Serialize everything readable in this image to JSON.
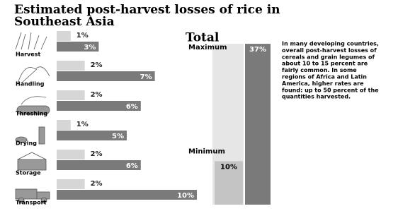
{
  "chart_data": {
    "type": "bar",
    "title": "Estimated post-harvest losses of rice in Southeast Asia",
    "categories": [
      "Harvest",
      "Handling",
      "Threshing",
      "Drying",
      "Storage",
      "Transport"
    ],
    "series": [
      {
        "color": "#d6d6d6",
        "values": [
          1,
          2,
          2,
          1,
          2,
          2
        ],
        "value_labels": [
          "1%",
          "2%",
          "2%",
          "1%",
          "2%",
          "2%"
        ]
      },
      {
        "color": "#7a7a7a",
        "values": [
          3,
          7,
          6,
          5,
          6,
          10
        ],
        "value_labels": [
          "3%",
          "7%",
          "6%",
          "5%",
          "6%",
          "10%"
        ]
      }
    ],
    "total": {
      "title": "Total",
      "maximum_label": "Maximum",
      "maximum": 37,
      "maximum_value_label": "37%",
      "minimum_label": "Minimum",
      "minimum": 10,
      "minimum_value_label": "10%"
    },
    "note_lines": [
      "In many developing countries,",
      "overall post-harvest losses of",
      "cereals and grain legumes of",
      "about 10 to 15 percent are",
      "fairly common. In some",
      "regions of Africa and Latin",
      "America, higher rates are",
      "found: up to 50 percent of the",
      "quantities harvested."
    ]
  }
}
